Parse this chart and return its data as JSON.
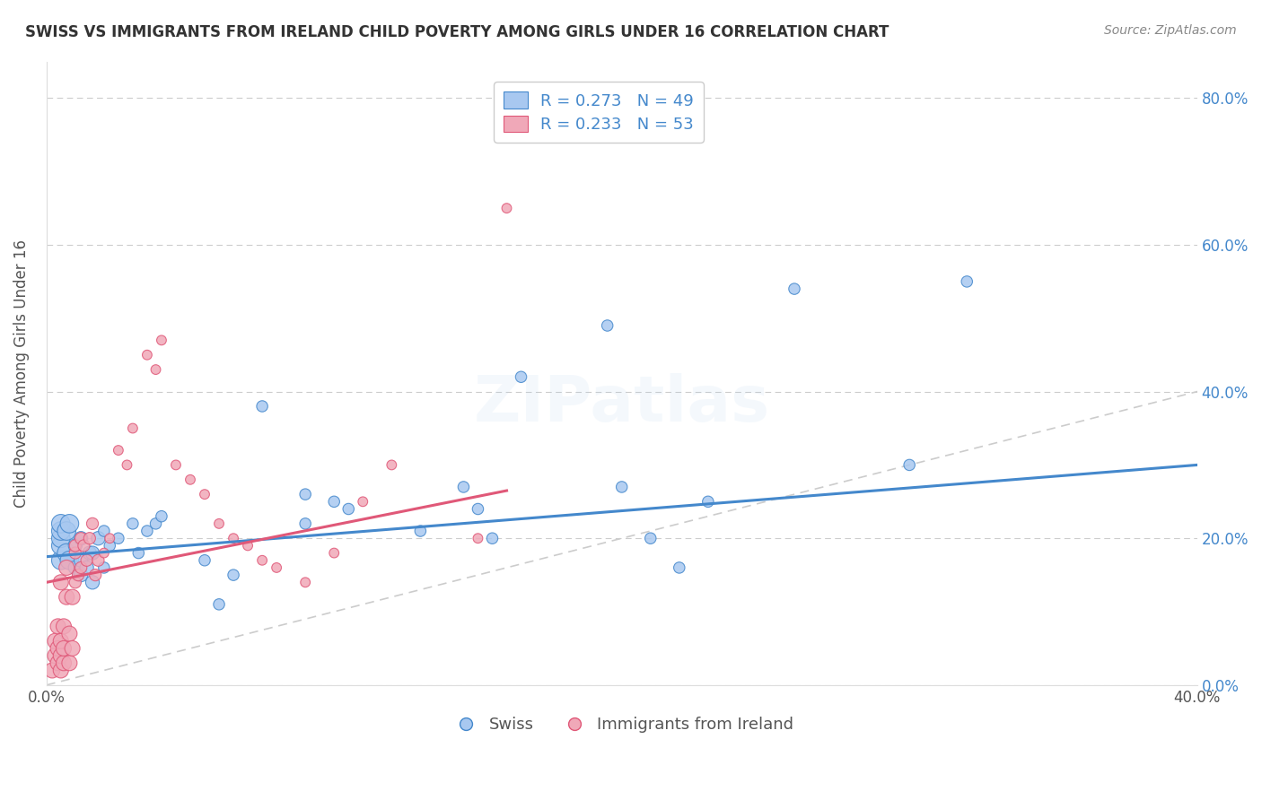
{
  "title": "SWISS VS IMMIGRANTS FROM IRELAND CHILD POVERTY AMONG GIRLS UNDER 16 CORRELATION CHART",
  "source": "Source: ZipAtlas.com",
  "ylabel": "Child Poverty Among Girls Under 16",
  "xlabel": "",
  "xlim": [
    0.0,
    0.4
  ],
  "ylim": [
    0.0,
    0.85
  ],
  "ytick_labels": [
    "0.0%",
    "20.0%",
    "40.0%",
    "60.0%",
    "80.0%"
  ],
  "ytick_vals": [
    0.0,
    0.2,
    0.4,
    0.6,
    0.8
  ],
  "xtick_labels": [
    "0.0%",
    "",
    "",
    "",
    "",
    "40.0%"
  ],
  "xtick_vals": [
    0.0,
    0.08,
    0.16,
    0.24,
    0.32,
    0.4
  ],
  "swiss_color": "#a8c8f0",
  "irish_color": "#f0a8b8",
  "swiss_line_color": "#4488cc",
  "irish_line_color": "#e05878",
  "diag_color": "#cccccc",
  "swiss_R": 0.273,
  "swiss_N": 49,
  "irish_R": 0.233,
  "irish_N": 53,
  "swiss_scatter_x": [
    0.005,
    0.005,
    0.005,
    0.005,
    0.005,
    0.007,
    0.007,
    0.008,
    0.008,
    0.01,
    0.01,
    0.012,
    0.012,
    0.012,
    0.014,
    0.015,
    0.016,
    0.016,
    0.018,
    0.02,
    0.02,
    0.022,
    0.025,
    0.03,
    0.032,
    0.035,
    0.038,
    0.04,
    0.055,
    0.06,
    0.065,
    0.075,
    0.09,
    0.09,
    0.1,
    0.105,
    0.13,
    0.145,
    0.15,
    0.155,
    0.165,
    0.195,
    0.2,
    0.21,
    0.22,
    0.23,
    0.26,
    0.3,
    0.32
  ],
  "swiss_scatter_y": [
    0.17,
    0.19,
    0.2,
    0.21,
    0.22,
    0.18,
    0.21,
    0.17,
    0.22,
    0.16,
    0.19,
    0.15,
    0.17,
    0.2,
    0.16,
    0.18,
    0.14,
    0.18,
    0.2,
    0.16,
    0.21,
    0.19,
    0.2,
    0.22,
    0.18,
    0.21,
    0.22,
    0.23,
    0.17,
    0.11,
    0.15,
    0.38,
    0.22,
    0.26,
    0.25,
    0.24,
    0.21,
    0.27,
    0.24,
    0.2,
    0.42,
    0.49,
    0.27,
    0.2,
    0.16,
    0.25,
    0.54,
    0.3,
    0.55
  ],
  "irish_scatter_x": [
    0.002,
    0.003,
    0.003,
    0.004,
    0.004,
    0.004,
    0.005,
    0.005,
    0.005,
    0.005,
    0.006,
    0.006,
    0.006,
    0.007,
    0.007,
    0.008,
    0.008,
    0.009,
    0.009,
    0.01,
    0.01,
    0.01,
    0.011,
    0.012,
    0.012,
    0.013,
    0.014,
    0.015,
    0.016,
    0.017,
    0.018,
    0.02,
    0.022,
    0.025,
    0.028,
    0.03,
    0.035,
    0.038,
    0.04,
    0.045,
    0.05,
    0.055,
    0.06,
    0.065,
    0.07,
    0.075,
    0.08,
    0.09,
    0.1,
    0.11,
    0.12,
    0.15,
    0.16
  ],
  "irish_scatter_y": [
    0.02,
    0.04,
    0.06,
    0.03,
    0.05,
    0.08,
    0.02,
    0.04,
    0.06,
    0.14,
    0.03,
    0.05,
    0.08,
    0.12,
    0.16,
    0.03,
    0.07,
    0.05,
    0.12,
    0.14,
    0.18,
    0.19,
    0.15,
    0.16,
    0.2,
    0.19,
    0.17,
    0.2,
    0.22,
    0.15,
    0.17,
    0.18,
    0.2,
    0.32,
    0.3,
    0.35,
    0.45,
    0.43,
    0.47,
    0.3,
    0.28,
    0.26,
    0.22,
    0.2,
    0.19,
    0.17,
    0.16,
    0.14,
    0.18,
    0.25,
    0.3,
    0.2,
    0.65
  ],
  "watermark_text": "ZIPatlas",
  "watermark_alpha": 0.12
}
